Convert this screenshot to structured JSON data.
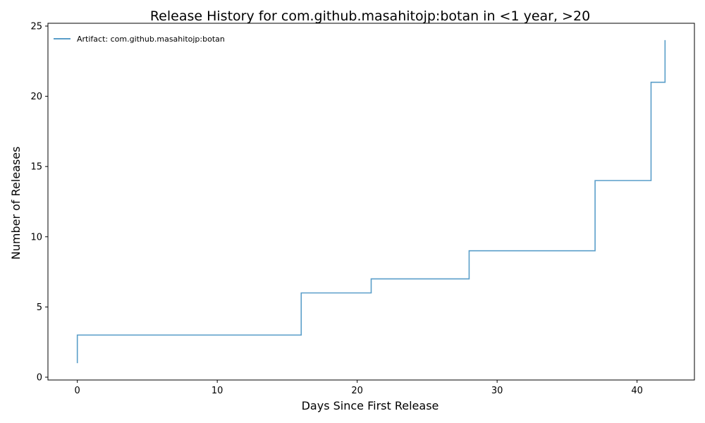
{
  "chart_data": {
    "type": "line",
    "title": "Release History for com.github.masahitojp:botan in <1 year, >20",
    "xlabel": "Days Since First Release",
    "ylabel": "Number of Releases",
    "xlim": [
      -2.1,
      44.1
    ],
    "ylim": [
      -0.2,
      25.2
    ],
    "xticks": [
      0,
      10,
      20,
      30,
      40
    ],
    "yticks": [
      0,
      5,
      10,
      15,
      20,
      25
    ],
    "grid": false,
    "legend_position": "top-left",
    "step": "post",
    "series": [
      {
        "name": "Artifact: com.github.masahitojp:botan",
        "color": "#5a9ec9",
        "x": [
          0,
          0,
          16,
          21,
          28,
          37,
          41,
          42
        ],
        "y": [
          1,
          3,
          6,
          7,
          9,
          14,
          21,
          24
        ]
      }
    ]
  }
}
